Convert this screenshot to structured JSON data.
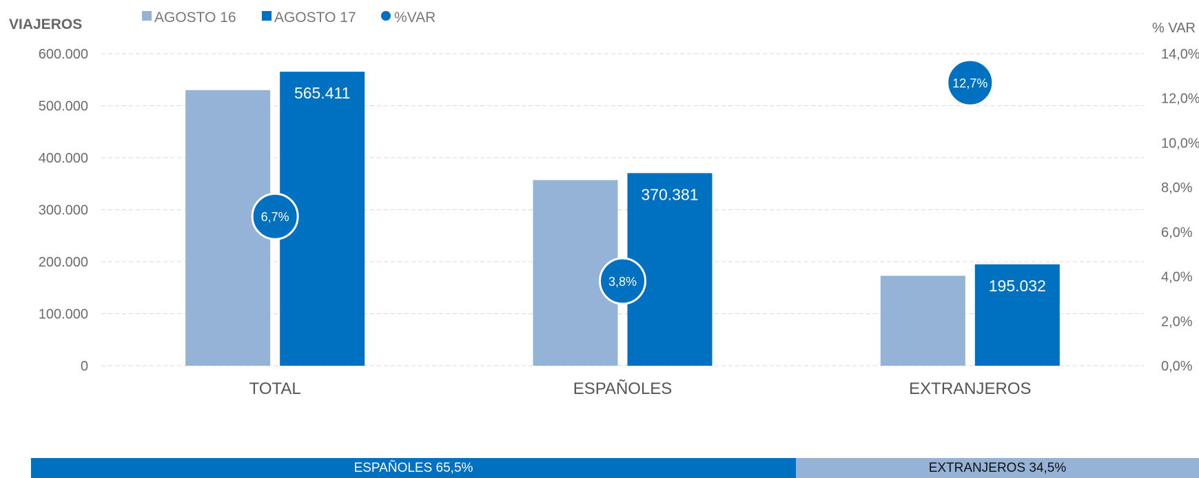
{
  "chart_data": {
    "type": "bar",
    "title_left": "VIAJEROS",
    "title_right": "% VAR",
    "categories": [
      "TOTAL",
      "ESPAÑOLES",
      "EXTRANJEROS"
    ],
    "series": [
      {
        "name": "AGOSTO 16",
        "values": [
          530000,
          357000,
          173000
        ],
        "color": "#95b3d7"
      },
      {
        "name": "AGOSTO 17",
        "values": [
          565411,
          370381,
          195032
        ],
        "color": "#0070c0",
        "labels": [
          "565.411",
          "370.381",
          "195.032"
        ]
      }
    ],
    "var_series": {
      "name": "%VAR",
      "values": [
        6.7,
        3.8,
        12.7
      ],
      "labels": [
        "6,7%",
        "3,8%",
        "12,7%"
      ],
      "color": "#0070c0"
    },
    "ylim": [
      0,
      600000
    ],
    "y_ticks": [
      "0",
      "100.000",
      "200.000",
      "300.000",
      "400.000",
      "500.000",
      "600.000"
    ],
    "y2lim": [
      0,
      14
    ],
    "y2_ticks": [
      "0,0%",
      "2,0%",
      "4,0%",
      "6,0%",
      "8,0%",
      "10,0%",
      "12,0%",
      "14,0%"
    ],
    "grid": true,
    "legend_position": "top"
  },
  "share_bar": {
    "segments": [
      {
        "label": "ESPAÑOLES 65,5%",
        "share": 65.5,
        "color": "#0070c0",
        "text_color": "#ffffff"
      },
      {
        "label": "EXTRANJEROS 34,5%",
        "share": 34.5,
        "color": "#95b3d7",
        "text_color": "#111111"
      }
    ]
  }
}
